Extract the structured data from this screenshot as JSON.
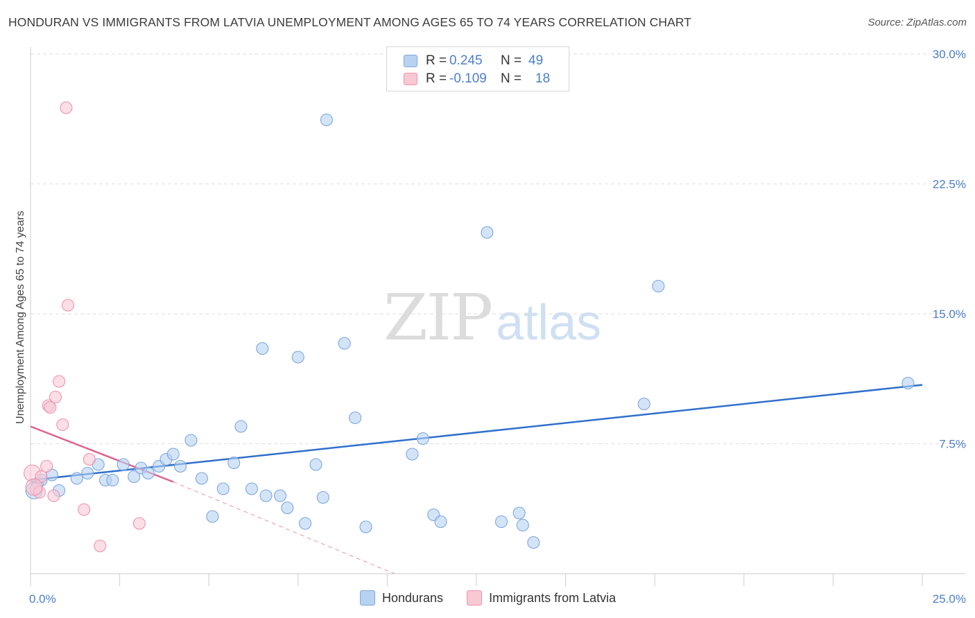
{
  "header": {
    "title": "HONDURAN VS IMMIGRANTS FROM LATVIA UNEMPLOYMENT AMONG AGES 65 TO 74 YEARS CORRELATION CHART",
    "source": "Source: ZipAtlas.com"
  },
  "watermark": {
    "zip": "ZIP",
    "atlas": "atlas"
  },
  "legend": {
    "rows": [
      {
        "r_label": "R =",
        "r_value": "0.245",
        "n_label": "N =",
        "n_value": "49",
        "color": "#a9c8ee"
      },
      {
        "r_label": "R =",
        "r_value": "-0.109",
        "n_label": "N =",
        "n_value": "18",
        "color": "#f6b8c8"
      }
    ]
  },
  "bottom_legend": {
    "hondurans": "Hondurans",
    "latvia": "Immigrants from Latvia"
  },
  "colors": {
    "blue_fill": "#b8d2f2",
    "blue_stroke": "#7aa6dd",
    "blue_line": "#2f6fcc",
    "pink_fill": "#f9c8d5",
    "pink_stroke": "#ec92ad",
    "pink_line": "#e0628c",
    "grid": "#dddddd"
  },
  "chart_data": {
    "type": "scatter",
    "title": "HONDURAN VS IMMIGRANTS FROM LATVIA UNEMPLOYMENT AMONG AGES 65 TO 74 YEARS CORRELATION CHART",
    "xlabel": "",
    "ylabel": "Unemployment Among Ages 65 to 74 years",
    "xlim": [
      0,
      25
    ],
    "ylim": [
      0,
      30
    ],
    "x_tick_labels": [
      "0.0%",
      "25.0%"
    ],
    "y_ticks": [
      7.5,
      15.0,
      22.5,
      30.0
    ],
    "y_tick_labels": [
      "7.5%",
      "15.0%",
      "22.5%",
      "30.0%"
    ],
    "series": [
      {
        "name": "Hondurans",
        "points": [
          [
            0.2,
            5.2
          ],
          [
            0.3,
            5.4
          ],
          [
            0.6,
            5.7
          ],
          [
            0.8,
            4.8
          ],
          [
            1.3,
            5.5
          ],
          [
            1.6,
            5.8
          ],
          [
            1.9,
            6.3
          ],
          [
            2.1,
            5.4
          ],
          [
            2.3,
            5.4
          ],
          [
            2.6,
            6.3
          ],
          [
            2.9,
            5.6
          ],
          [
            3.1,
            6.1
          ],
          [
            3.3,
            5.8
          ],
          [
            3.6,
            6.2
          ],
          [
            3.8,
            6.6
          ],
          [
            4.0,
            6.9
          ],
          [
            4.2,
            6.2
          ],
          [
            4.5,
            7.7
          ],
          [
            4.8,
            5.5
          ],
          [
            5.1,
            3.3
          ],
          [
            5.4,
            4.9
          ],
          [
            5.7,
            6.4
          ],
          [
            5.9,
            8.5
          ],
          [
            6.2,
            4.9
          ],
          [
            6.6,
            4.5
          ],
          [
            6.5,
            13.0
          ],
          [
            7.0,
            4.5
          ],
          [
            7.2,
            3.8
          ],
          [
            7.5,
            12.5
          ],
          [
            7.7,
            2.9
          ],
          [
            8.0,
            6.3
          ],
          [
            8.2,
            4.4
          ],
          [
            8.3,
            26.2
          ],
          [
            8.8,
            13.3
          ],
          [
            9.1,
            9.0
          ],
          [
            9.4,
            2.7
          ],
          [
            10.7,
            6.9
          ],
          [
            11.0,
            7.8
          ],
          [
            11.3,
            3.4
          ],
          [
            11.5,
            3.0
          ],
          [
            12.8,
            19.7
          ],
          [
            13.2,
            3.0
          ],
          [
            13.7,
            3.5
          ],
          [
            13.8,
            2.8
          ],
          [
            14.1,
            1.8
          ],
          [
            17.2,
            9.8
          ],
          [
            17.6,
            16.6
          ],
          [
            24.6,
            11.0
          ],
          [
            0.1,
            4.8
          ]
        ],
        "trend": {
          "x": [
            0,
            25
          ],
          "y": [
            5.4,
            10.9
          ]
        }
      },
      {
        "name": "Immigrants from Latvia",
        "points": [
          [
            0.05,
            5.8
          ],
          [
            0.15,
            4.9
          ],
          [
            0.25,
            4.7
          ],
          [
            0.3,
            5.6
          ],
          [
            0.45,
            6.2
          ],
          [
            0.5,
            9.7
          ],
          [
            0.55,
            9.6
          ],
          [
            0.65,
            4.5
          ],
          [
            0.7,
            10.2
          ],
          [
            0.8,
            11.1
          ],
          [
            0.9,
            8.6
          ],
          [
            1.0,
            26.9
          ],
          [
            1.05,
            15.5
          ],
          [
            1.5,
            3.7
          ],
          [
            1.65,
            6.6
          ],
          [
            1.95,
            1.6
          ],
          [
            3.05,
            2.9
          ],
          [
            0.1,
            5.0
          ]
        ],
        "trend": {
          "x": [
            0,
            4.0
          ],
          "y": [
            8.5,
            5.3
          ]
        },
        "trend_extension": {
          "x": [
            4.0,
            10.2
          ],
          "y": [
            5.3,
            0.0
          ]
        }
      }
    ]
  }
}
